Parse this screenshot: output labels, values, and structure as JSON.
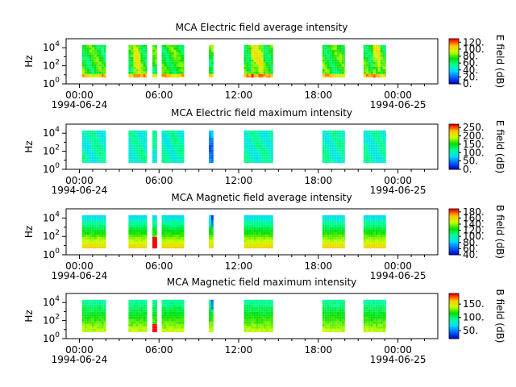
{
  "chart_data": [
    {
      "type": "heatmap",
      "title": "MCA  Electric field average intensity",
      "ylabel": "Hz",
      "y_scale": "log",
      "ylim": [
        1,
        100000
      ],
      "y_ticks": [
        {
          "base": "10",
          "exp": "0"
        },
        {
          "base": "10",
          "exp": "2"
        },
        {
          "base": "10",
          "exp": "4"
        }
      ],
      "colorbar_label": "E field (dB)",
      "colorbar_range": [
        0,
        130
      ],
      "colorbar_ticks": [
        "0.",
        "20.",
        "40.",
        "60.",
        "80.",
        "100.",
        "120."
      ],
      "colormap": [
        "#0000c8",
        "#0064ff",
        "#00dcff",
        "#00ff96",
        "#00e000",
        "#c8ff00",
        "#ffc800",
        "#ff0000"
      ],
      "pattern": "average-electric"
    },
    {
      "type": "heatmap",
      "title": "MCA  Electric field maximum intensity",
      "ylabel": "Hz",
      "y_scale": "log",
      "ylim": [
        1,
        100000
      ],
      "y_ticks": [
        {
          "base": "10",
          "exp": "0"
        },
        {
          "base": "10",
          "exp": "2"
        },
        {
          "base": "10",
          "exp": "4"
        }
      ],
      "colorbar_label": "E field (dB)",
      "colorbar_range": [
        0,
        270
      ],
      "colorbar_ticks": [
        "0.",
        "50.",
        "100.",
        "150.",
        "200.",
        "250."
      ],
      "colormap": [
        "#0000c8",
        "#0064ff",
        "#00dcff",
        "#00ff96",
        "#00e000",
        "#c8ff00",
        "#ffc800",
        "#ff0000"
      ],
      "pattern": "maximum-electric"
    },
    {
      "type": "heatmap",
      "title": "MCA  Magnetic field average intensity",
      "ylabel": "Hz",
      "y_scale": "log",
      "ylim": [
        1,
        100000
      ],
      "y_ticks": [
        {
          "base": "10",
          "exp": "0"
        },
        {
          "base": "10",
          "exp": "2"
        },
        {
          "base": "10",
          "exp": "4"
        }
      ],
      "colorbar_label": "B field (dB)",
      "colorbar_range": [
        40,
        190
      ],
      "colorbar_ticks": [
        "40.",
        "60.",
        "80.",
        "100.",
        "120.",
        "140.",
        "160.",
        "180."
      ],
      "colormap": [
        "#0000c8",
        "#0064ff",
        "#00dcff",
        "#00ff96",
        "#00e000",
        "#c8ff00",
        "#ffc800",
        "#ff0000"
      ],
      "pattern": "average-magnetic"
    },
    {
      "type": "heatmap",
      "title": "MCA  Magnetic field maximum intensity",
      "ylabel": "Hz",
      "y_scale": "log",
      "ylim": [
        1,
        100000
      ],
      "y_ticks": [
        {
          "base": "10",
          "exp": "0"
        },
        {
          "base": "10",
          "exp": "2"
        },
        {
          "base": "10",
          "exp": "4"
        }
      ],
      "colorbar_label": "B field (dB)",
      "colorbar_range": [
        20,
        190
      ],
      "colorbar_ticks": [
        "50.",
        "100.",
        "150."
      ],
      "colormap": [
        "#0000c8",
        "#0064ff",
        "#00dcff",
        "#00ff96",
        "#00e000",
        "#c8ff00",
        "#ffc800",
        "#ff0000"
      ],
      "pattern": "maximum-magnetic"
    }
  ],
  "x_axis": {
    "xlim_hours": [
      -1,
      27
    ],
    "major_ticks": [
      {
        "hour": 0,
        "label": "00:00"
      },
      {
        "hour": 6,
        "label": "06:00"
      },
      {
        "hour": 12,
        "label": "12:00"
      },
      {
        "hour": 18,
        "label": "18:00"
      },
      {
        "hour": 24,
        "label": "00:00"
      }
    ],
    "date_labels": [
      {
        "hour": 0,
        "label": "1994-06-24"
      },
      {
        "hour": 24,
        "label": "1994-06-25"
      }
    ]
  },
  "data_segments_hours": [
    [
      0.2,
      2.0
    ],
    [
      3.7,
      5.1
    ],
    [
      5.5,
      5.85
    ],
    [
      6.2,
      7.9
    ],
    [
      9.75,
      10.1
    ],
    [
      12.4,
      14.6
    ],
    [
      18.3,
      20.0
    ],
    [
      21.4,
      23.1
    ]
  ]
}
